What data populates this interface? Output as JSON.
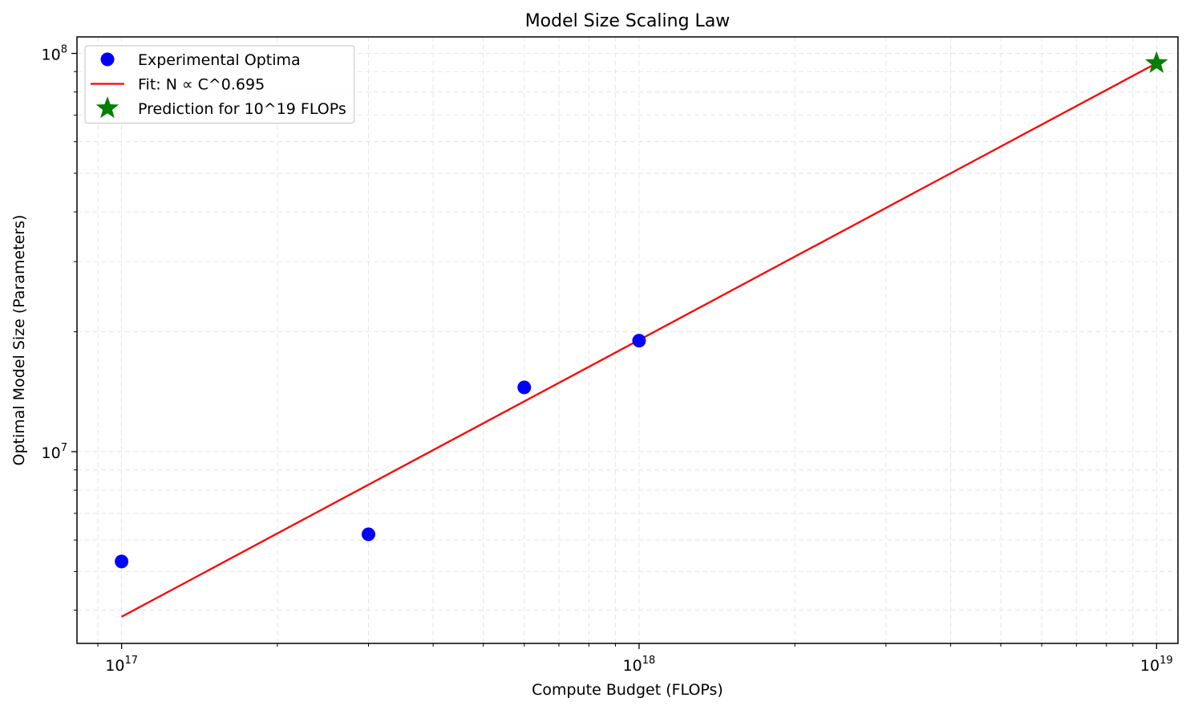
{
  "chart_data": {
    "type": "scatter",
    "title": "Model Size Scaling Law",
    "xlabel": "Compute Budget (FLOPs)",
    "ylabel": "Optimal Model Size (Parameters)",
    "xscale": "log",
    "yscale": "log",
    "xlim": [
      8.2e+16,
      1.1e+19
    ],
    "ylim": [
      3300000.0,
      110000000.0
    ],
    "grid": true,
    "legend_position": "top-left",
    "x_major_ticks": [
      {
        "value": 1e+17,
        "base": "10",
        "exponent": "17"
      },
      {
        "value": 1e+18,
        "base": "10",
        "exponent": "18"
      },
      {
        "value": 1e+19,
        "base": "10",
        "exponent": "19"
      }
    ],
    "y_major_ticks": [
      {
        "value": 10000000.0,
        "base": "10",
        "exponent": "7"
      },
      {
        "value": 100000000.0,
        "base": "10",
        "exponent": "8"
      }
    ],
    "series": [
      {
        "name": "Experimental Optima",
        "kind": "scatter",
        "marker": "circle",
        "color": "#0000ff",
        "x": [
          1e+17,
          3e+17,
          6e+17,
          1e+18
        ],
        "y": [
          5300000,
          6200000,
          14500000,
          19000000
        ]
      },
      {
        "name": "Fit: N ∝ C^0.695",
        "kind": "line",
        "color": "#ff0000",
        "x": [
          1e+17,
          1e+19
        ],
        "y": [
          3850000,
          94500000
        ]
      },
      {
        "name": "Prediction for 10^19 FLOPs",
        "kind": "scatter",
        "marker": "star",
        "color": "#008000",
        "x": [
          1e+19
        ],
        "y": [
          94500000
        ]
      }
    ]
  }
}
